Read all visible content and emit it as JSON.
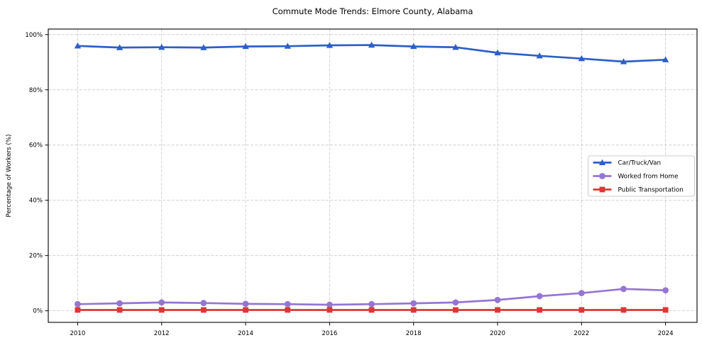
{
  "title": "Commute Mode Trends: Elmore County, Alabama",
  "chart_data": {
    "type": "line",
    "title": "Commute Mode Trends: Elmore County, Alabama",
    "xlabel": "",
    "ylabel": "Percentage of Workers (%)",
    "x": [
      2010,
      2011,
      2012,
      2013,
      2014,
      2015,
      2016,
      2017,
      2018,
      2019,
      2020,
      2021,
      2022,
      2023,
      2024
    ],
    "series": [
      {
        "name": "Car/Truck/Van",
        "color": "#2c5fc7",
        "marker": "triangle",
        "values": [
          95.9,
          95.3,
          95.4,
          95.3,
          95.7,
          95.8,
          96.1,
          96.2,
          95.7,
          95.4,
          93.4,
          92.3,
          91.3,
          90.2,
          90.9
        ]
      },
      {
        "name": "Worked from Home",
        "color": "#9575d2",
        "marker": "circle",
        "values": [
          2.4,
          2.7,
          3.0,
          2.8,
          2.5,
          2.4,
          2.2,
          2.4,
          2.7,
          3.0,
          3.9,
          5.3,
          6.4,
          7.9,
          7.4
        ]
      },
      {
        "name": "Public Transportation",
        "color": "#e23434",
        "marker": "square",
        "values": [
          0.3,
          0.3,
          0.3,
          0.3,
          0.3,
          0.3,
          0.3,
          0.3,
          0.3,
          0.3,
          0.3,
          0.3,
          0.3,
          0.3,
          0.3
        ]
      }
    ],
    "xlim": [
      2009.3,
      2024.75
    ],
    "ylim": [
      -4.2,
      102
    ],
    "xticks": [
      2010,
      2012,
      2014,
      2016,
      2018,
      2020,
      2022,
      2024
    ],
    "yticks": [
      0,
      20,
      40,
      60,
      80,
      100
    ],
    "ytick_suffix": "%",
    "grid": "dashed",
    "grid_color": "#c9c9c9",
    "legend_position": "right-middle",
    "legend_border_color": "#cccccc",
    "frame_color": "#000000"
  }
}
